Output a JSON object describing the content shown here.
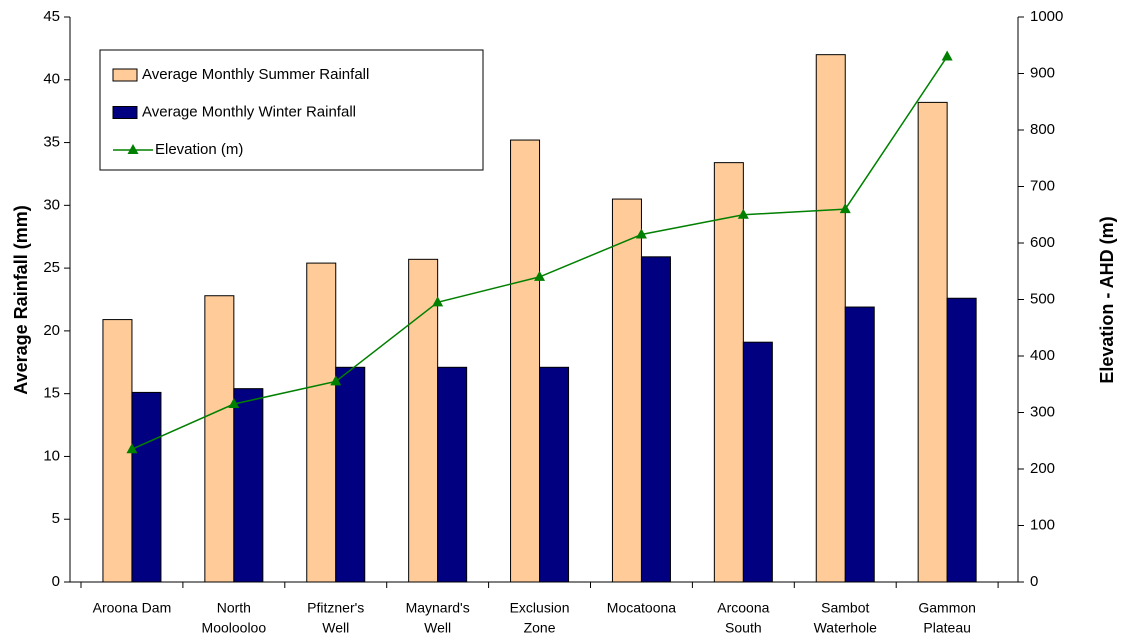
{
  "chart_data": {
    "type": "bar_line",
    "categories": [
      [
        "Aroona Dam"
      ],
      [
        "North",
        "Moolooloo"
      ],
      [
        "Pfitzner's",
        "Well"
      ],
      [
        "Maynard's",
        "Well"
      ],
      [
        "Exclusion",
        "Zone"
      ],
      [
        "Mocatoona"
      ],
      [
        "Arcoona",
        "South"
      ],
      [
        "Sambot",
        "Waterhole"
      ],
      [
        "Gammon",
        "Plateau"
      ]
    ],
    "series": [
      {
        "name": "Average Monthly Summer Rainfall",
        "color": "#FFCC99",
        "type": "bar",
        "values": [
          20.9,
          22.8,
          25.4,
          25.7,
          35.2,
          30.5,
          33.4,
          42.0,
          38.2
        ]
      },
      {
        "name": "Average Monthly Winter Rainfall",
        "color": "#000080",
        "type": "bar",
        "values": [
          15.1,
          15.4,
          17.1,
          17.1,
          17.1,
          25.9,
          19.1,
          21.9,
          22.6
        ]
      },
      {
        "name": "Elevation (m)",
        "color": "#008000",
        "type": "line",
        "axis": "y2",
        "values": [
          235,
          315,
          355,
          495,
          540,
          615,
          650,
          660,
          930
        ]
      }
    ],
    "ylabel": "Average Rainfall (mm)",
    "y2label": "Elevation - AHD (m)",
    "ylim": [
      0,
      45
    ],
    "yticks": [
      0,
      5,
      10,
      15,
      20,
      25,
      30,
      35,
      40,
      45
    ],
    "y2lim": [
      0,
      1000
    ],
    "y2ticks": [
      0,
      100,
      200,
      300,
      400,
      500,
      600,
      700,
      800,
      900,
      1000
    ],
    "legend": "upper left"
  }
}
